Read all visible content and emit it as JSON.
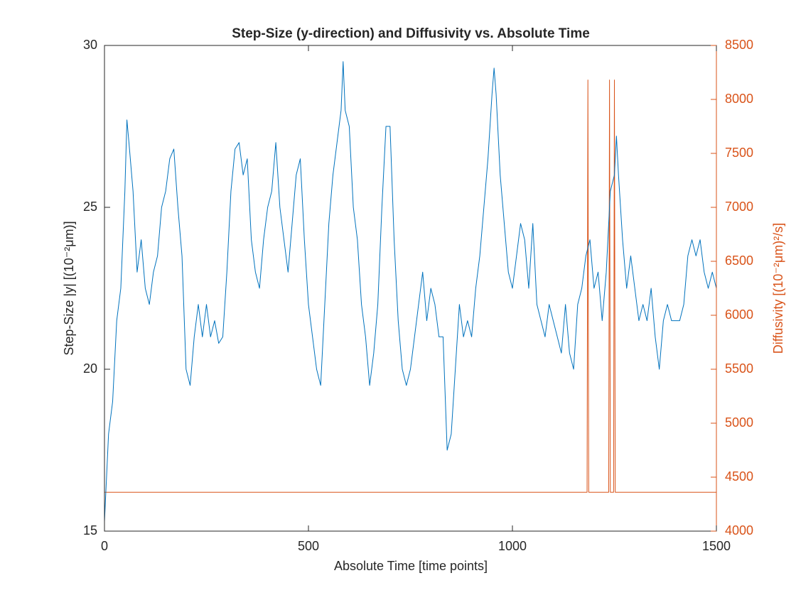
{
  "chart_data": {
    "type": "line",
    "title": "Step-Size (y-direction) and Diffusivity vs. Absolute Time",
    "x_label": "Absolute Time [time points]",
    "y_label": "Step-Size |y| [(10⁻²μm)]",
    "y2_label": "Diffusivity [(10⁻²μm)²/s]",
    "xlim": [
      0,
      1500
    ],
    "xticks": [
      0,
      500,
      1000,
      1500
    ],
    "ylim": [
      15,
      30
    ],
    "yticks": [
      15,
      20,
      25,
      30
    ],
    "y2lim": [
      4000,
      8500
    ],
    "y2ticks": [
      4000,
      4500,
      5000,
      5500,
      6000,
      6500,
      7000,
      7500,
      8000,
      8500
    ],
    "y2_color": "#d95319",
    "grid": false,
    "series": [
      {
        "color": "#0072bd",
        "x": [
          0,
          10,
          20,
          30,
          40,
          50,
          55,
          60,
          70,
          80,
          90,
          100,
          110,
          120,
          130,
          140,
          150,
          160,
          170,
          180,
          190,
          200,
          210,
          220,
          230,
          240,
          250,
          260,
          270,
          280,
          290,
          300,
          310,
          320,
          330,
          340,
          350,
          360,
          370,
          380,
          390,
          400,
          410,
          420,
          430,
          440,
          450,
          460,
          470,
          480,
          490,
          500,
          510,
          520,
          530,
          540,
          550,
          560,
          570,
          580,
          585,
          590,
          600,
          610,
          620,
          630,
          640,
          650,
          660,
          670,
          680,
          690,
          700,
          710,
          720,
          730,
          740,
          750,
          760,
          770,
          780,
          790,
          800,
          810,
          820,
          830,
          840,
          850,
          860,
          870,
          880,
          890,
          900,
          910,
          920,
          930,
          940,
          950,
          955,
          960,
          970,
          980,
          990,
          1000,
          1010,
          1020,
          1030,
          1040,
          1050,
          1060,
          1070,
          1080,
          1090,
          1100,
          1110,
          1120,
          1130,
          1140,
          1150,
          1160,
          1170,
          1180,
          1190,
          1200,
          1210,
          1220,
          1230,
          1240,
          1250,
          1255,
          1260,
          1270,
          1280,
          1290,
          1300,
          1310,
          1320,
          1330,
          1340,
          1350,
          1360,
          1370,
          1380,
          1390,
          1400,
          1410,
          1420,
          1430,
          1440,
          1450,
          1460,
          1470,
          1480,
          1490,
          1500
        ],
        "values": [
          15.3,
          18.0,
          19.0,
          21.5,
          22.5,
          25.5,
          27.7,
          27.0,
          25.5,
          23.0,
          24.0,
          22.5,
          22.0,
          23.0,
          23.5,
          25.0,
          25.5,
          26.5,
          26.8,
          25.0,
          23.5,
          20.0,
          19.5,
          21.0,
          22.0,
          21.0,
          22.0,
          21.0,
          21.5,
          20.8,
          21.0,
          23.0,
          25.5,
          26.8,
          27.0,
          26.0,
          26.5,
          24.0,
          23.0,
          22.5,
          24.0,
          25.0,
          25.5,
          27.0,
          25.0,
          24.0,
          23.0,
          24.5,
          26.0,
          26.5,
          24.0,
          22.0,
          21.0,
          20.0,
          19.5,
          22.0,
          24.5,
          26.0,
          27.0,
          28.0,
          29.5,
          28.0,
          27.5,
          25.0,
          24.0,
          22.0,
          21.0,
          19.5,
          20.5,
          22.0,
          25.0,
          27.5,
          27.5,
          24.0,
          21.5,
          20.0,
          19.5,
          20.0,
          21.0,
          22.0,
          23.0,
          21.5,
          22.5,
          22.0,
          21.0,
          21.0,
          17.5,
          18.0,
          20.0,
          22.0,
          21.0,
          21.5,
          21.0,
          22.5,
          23.5,
          25.0,
          26.5,
          28.5,
          29.3,
          28.5,
          26.0,
          24.5,
          23.0,
          22.5,
          23.5,
          24.5,
          24.0,
          22.5,
          24.5,
          22.0,
          21.5,
          21.0,
          22.0,
          21.5,
          21.0,
          20.5,
          22.0,
          20.5,
          20.0,
          22.0,
          22.5,
          23.5,
          24.0,
          22.5,
          23.0,
          21.5,
          23.0,
          25.5,
          26.0,
          27.2,
          26.0,
          24.0,
          22.5,
          23.5,
          22.5,
          21.5,
          22.0,
          21.5,
          22.5,
          21.0,
          20.0,
          21.5,
          22.0,
          21.5,
          21.5,
          21.5,
          22.0,
          23.5,
          24.0,
          23.5,
          24.0,
          23.0,
          22.5,
          23.0,
          22.5
        ]
      },
      {
        "color": "#d95319",
        "axis": "y2",
        "x": [
          0,
          1183,
          1185,
          1187,
          1236,
          1238,
          1240,
          1248,
          1250,
          1252,
          1500
        ],
        "values": [
          4360,
          4360,
          8180,
          4360,
          4360,
          8180,
          4360,
          4360,
          8180,
          4360,
          4360
        ]
      }
    ]
  }
}
